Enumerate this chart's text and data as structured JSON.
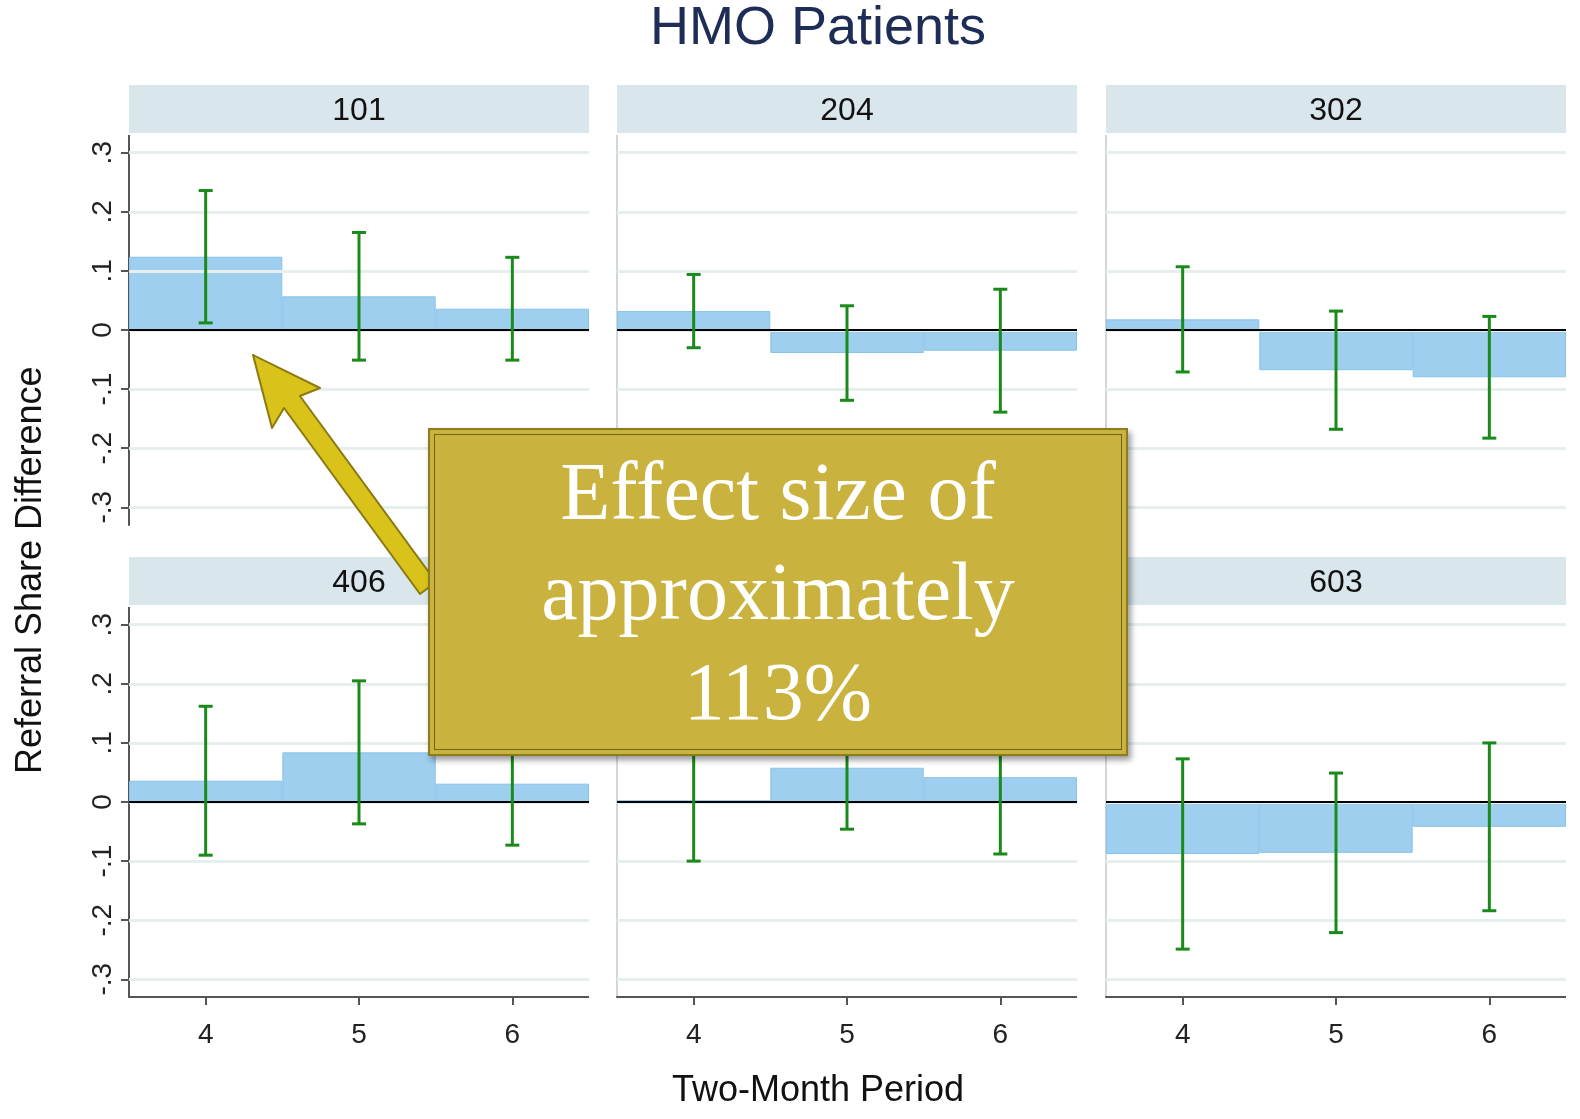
{
  "chart_data": [
    {
      "type": "bar",
      "ylabel": "Referral Share Difference",
      "subtitle": "101",
      "categories": [
        "4",
        "5",
        "6"
      ],
      "values": [
        0.124,
        0.057,
        0.036
      ],
      "errors": [
        0.112,
        0.108,
        0.087
      ],
      "color": "#9fcfee",
      "ylim": [
        -0.33,
        0.33
      ],
      "yticks": [
        {
          "value": -0.3,
          "label": "-.3"
        },
        {
          "value": -0.2,
          "label": "-.2"
        },
        {
          "value": -0.1,
          "label": "-.1"
        },
        0,
        {
          "value": 0.1,
          "label": ".1"
        },
        {
          "value": 0.2,
          "label": ".2"
        },
        {
          "value": 0.3,
          "label": ".3"
        }
      ],
      "grid": "y",
      "tick_labels": "y",
      "ref_lines": [
        {
          "axis": "y",
          "value": 0,
          "color": "#000000"
        }
      ],
      "annotations": [
        "Effect size of approximately 113%"
      ]
    },
    {
      "type": "bar",
      "title": "HMO Patients",
      "subtitle": "204",
      "categories": [
        "4",
        "5",
        "6"
      ],
      "values": [
        0.032,
        -0.039,
        -0.035
      ],
      "errors": [
        0.062,
        0.08,
        0.104
      ],
      "color": "#9fcfee",
      "ylim": [
        -0.33,
        0.33
      ],
      "yticks": [
        -0.3,
        -0.2,
        -0.1,
        0,
        0.1,
        0.2,
        0.3
      ],
      "grid": "y",
      "tick_labels": false,
      "ref_lines": [
        {
          "axis": "y",
          "value": 0,
          "color": "#000000"
        }
      ]
    },
    {
      "type": "bar",
      "subtitle": "302",
      "categories": [
        "4",
        "5",
        "6"
      ],
      "values": [
        0.018,
        -0.068,
        -0.08
      ],
      "errors": [
        0.089,
        0.1,
        0.103
      ],
      "color": "#9fcfee",
      "ylim": [
        -0.33,
        0.33
      ],
      "yticks": [
        -0.3,
        -0.2,
        -0.1,
        0,
        0.1,
        0.2,
        0.3
      ],
      "grid": "y",
      "tick_labels": false,
      "ref_lines": [
        {
          "axis": "y",
          "value": 0,
          "color": "#000000"
        }
      ]
    },
    {
      "type": "bar",
      "subtitle": "406",
      "categories": [
        "4",
        "5",
        "6"
      ],
      "values": [
        0.036,
        0.084,
        0.031
      ],
      "errors": [
        0.126,
        0.121,
        0.104
      ],
      "color": "#9fcfee",
      "ylim": [
        -0.33,
        0.33
      ],
      "yticks": [
        {
          "value": -0.3,
          "label": "-.3"
        },
        {
          "value": -0.2,
          "label": "-.2"
        },
        {
          "value": -0.1,
          "label": "-.1"
        },
        0,
        {
          "value": 0.1,
          "label": ".1"
        },
        {
          "value": 0.2,
          "label": ".2"
        },
        {
          "value": 0.3,
          "label": ".3"
        }
      ],
      "grid": "y",
      "ref_lines": [
        {
          "axis": "y",
          "value": 0,
          "color": "#000000"
        }
      ]
    },
    {
      "type": "bar",
      "xlabel": "Two-Month Period",
      "categories": [
        "4",
        "5",
        "6"
      ],
      "values": [
        0.003,
        0.058,
        0.042
      ],
      "errors": [
        0.103,
        0.104,
        0.13
      ],
      "color": "#9fcfee",
      "ylim": [
        -0.33,
        0.33
      ],
      "yticks": [
        -0.3,
        -0.2,
        -0.1,
        0,
        0.1,
        0.2,
        0.3
      ],
      "grid": "y",
      "tick_labels": "x",
      "ref_lines": [
        {
          "axis": "y",
          "value": 0,
          "color": "#000000"
        }
      ]
    },
    {
      "type": "bar",
      "subtitle": "603",
      "categories": [
        "4",
        "5",
        "6"
      ],
      "values": [
        -0.088,
        -0.086,
        -0.042
      ],
      "errors": [
        0.161,
        0.135,
        0.142
      ],
      "color": "#9fcfee",
      "ylim": [
        -0.33,
        0.33
      ],
      "yticks": [
        -0.3,
        -0.2,
        -0.1,
        0,
        0.1,
        0.2,
        0.3
      ],
      "grid": "y",
      "tick_labels": "x",
      "ref_lines": [
        {
          "axis": "y",
          "value": 0,
          "color": "#000000"
        }
      ]
    }
  ]
}
